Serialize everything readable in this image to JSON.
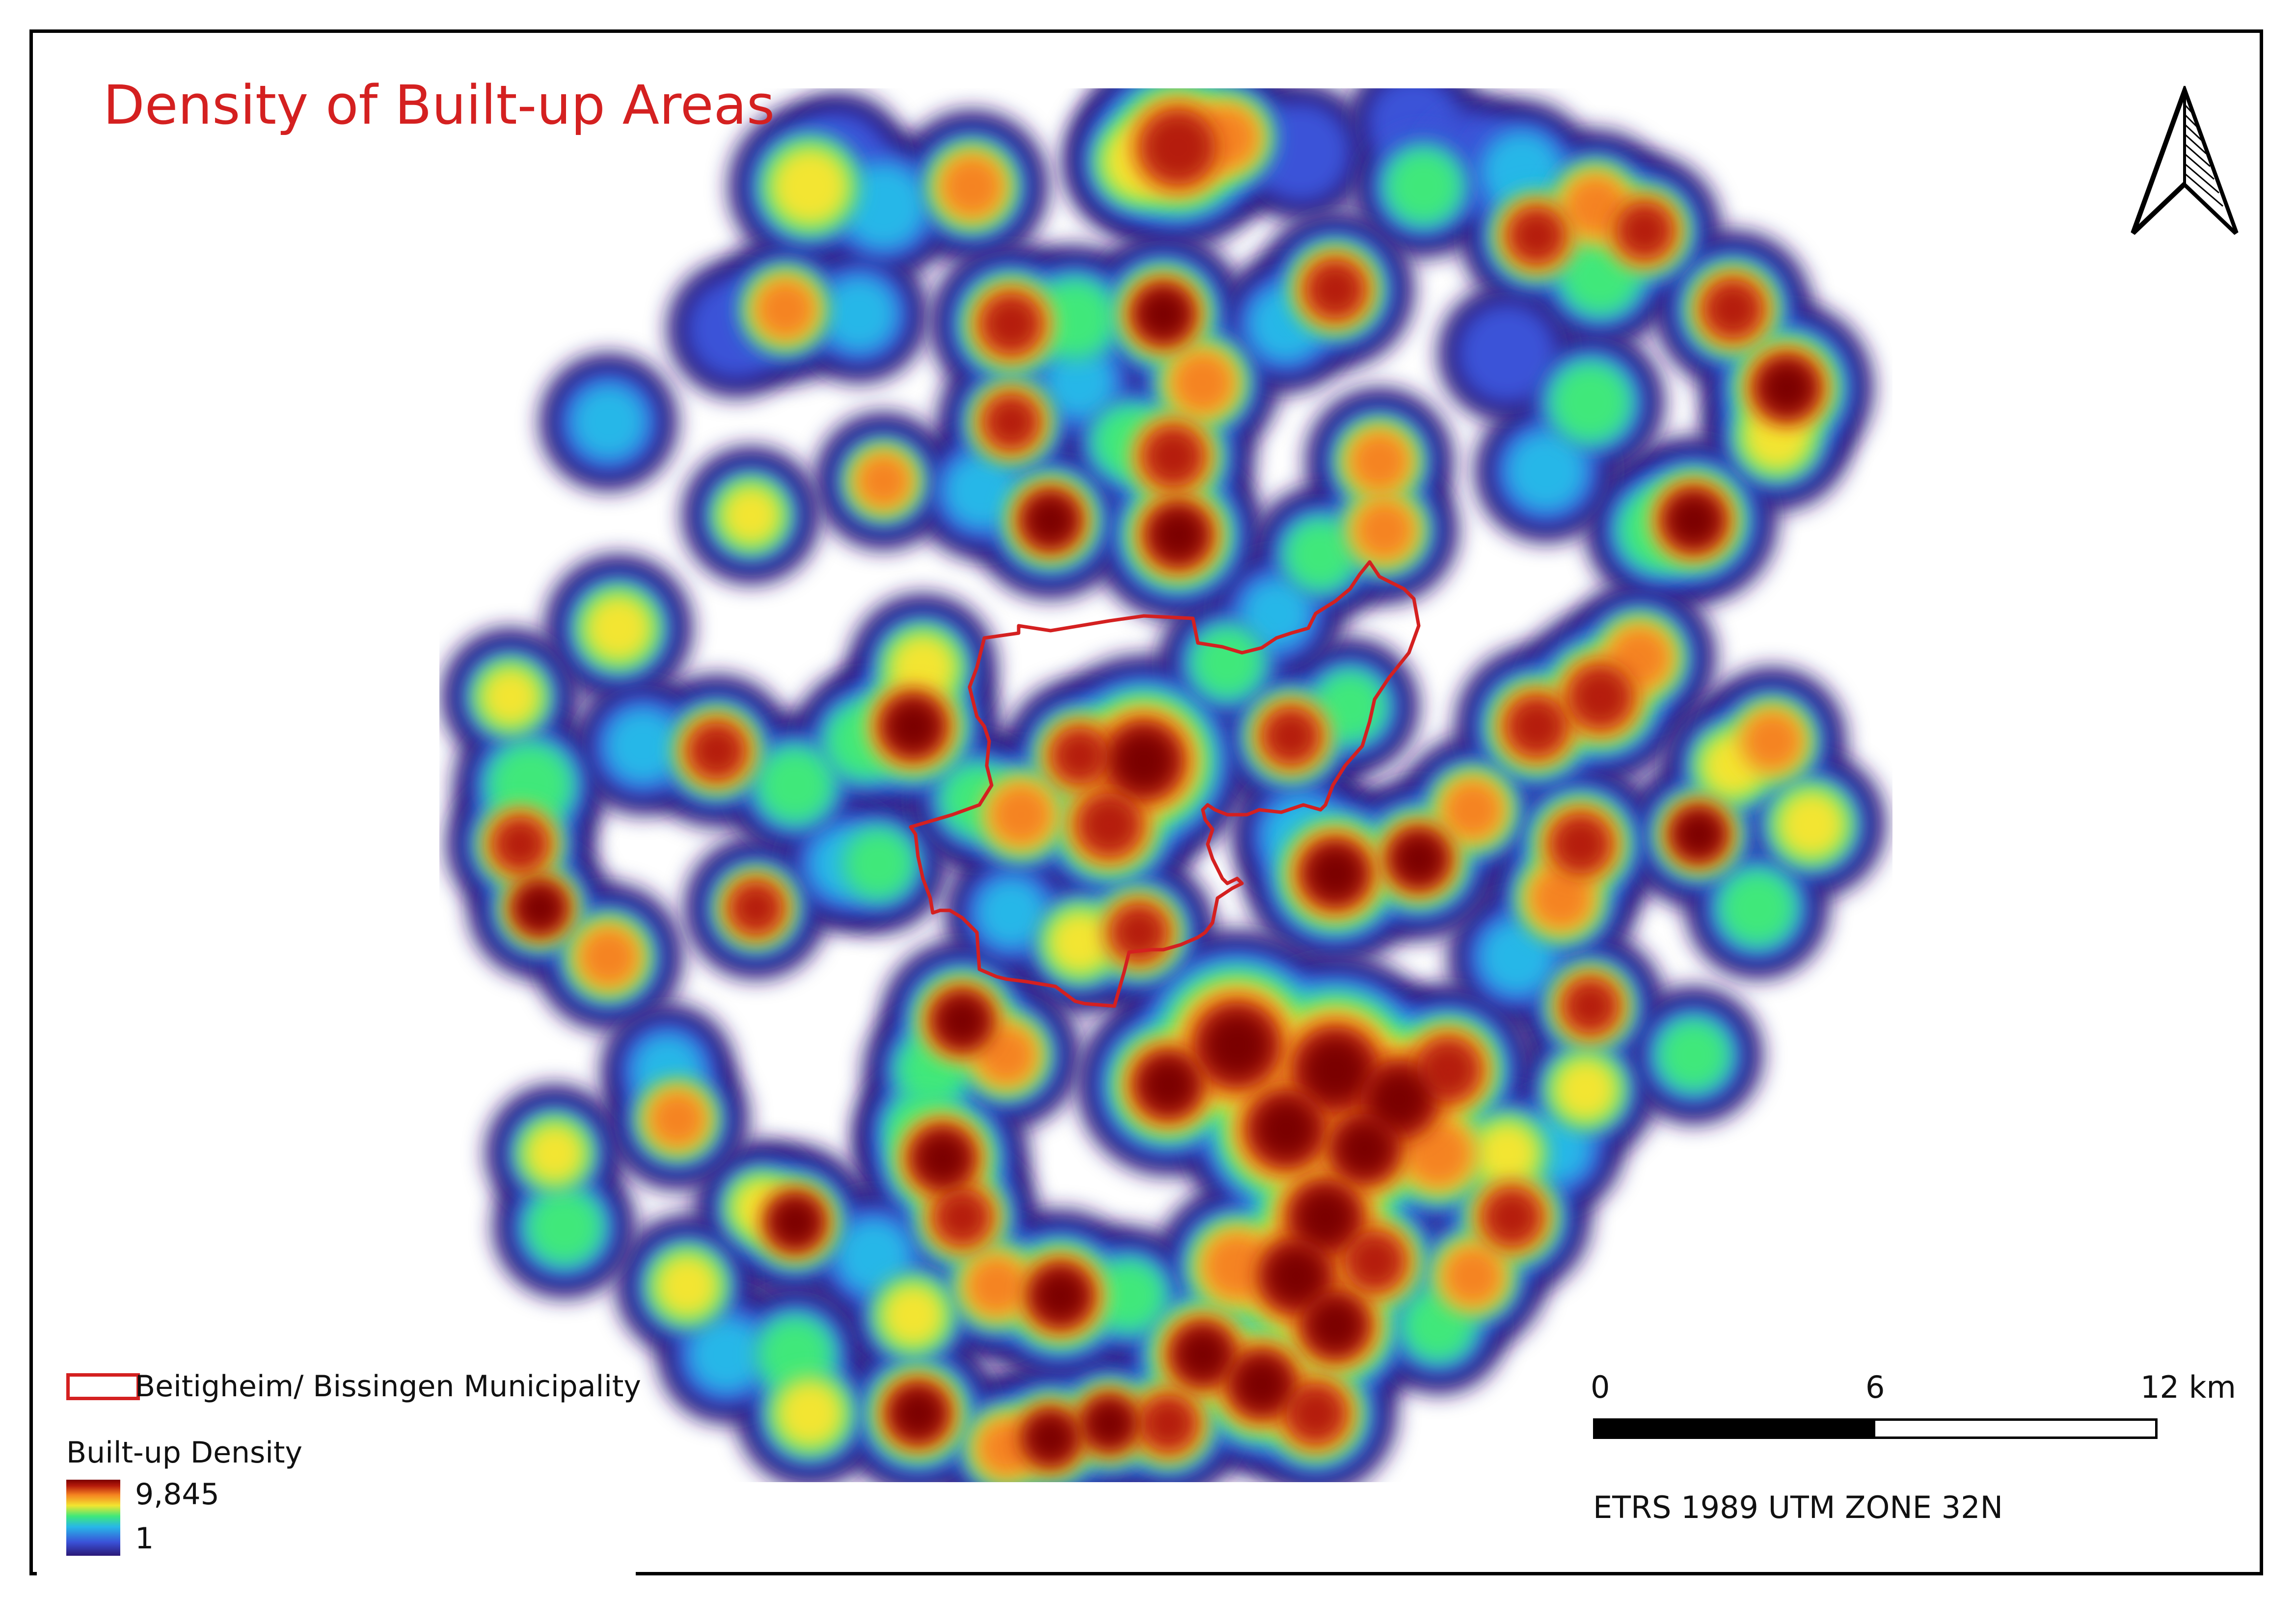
{
  "title": "Density of Built-up Areas",
  "legend": {
    "boundary_label": "Beitigheim/ Bissingen Municipality",
    "boundary_color": "#d42020",
    "density_heading": "Built-up Density",
    "density_max": "9,845",
    "density_min": "1",
    "ramp_colors": [
      "#2b1877",
      "#3a52d8",
      "#27b7e8",
      "#3fe87a",
      "#f3e530",
      "#f58320",
      "#b51a0b",
      "#7a0000"
    ]
  },
  "scale_bar": {
    "labels": [
      "0",
      "6",
      "12 km"
    ]
  },
  "crs": "ETRS 1989 UTM ZONE 32N",
  "north_arrow": "north-arrow-icon",
  "title_color": "#d42020"
}
